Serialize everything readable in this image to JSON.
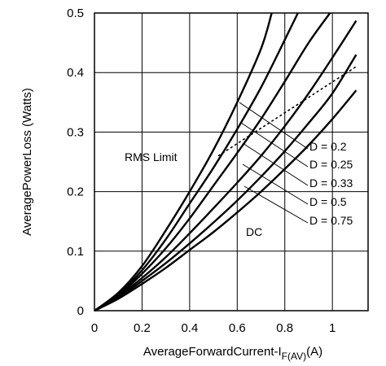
{
  "chart_data": {
    "type": "line",
    "xlabel": "AverageForwardCurrent-I",
    "xlabel_sub": "F(AV)",
    "xlabel_unit": "(A)",
    "ylabel": "AveragePowerLoss (Watts)",
    "xlim": [
      0,
      1.15
    ],
    "ylim": [
      0,
      0.5
    ],
    "xticks": [
      0,
      0.2,
      0.4,
      0.6,
      0.8,
      1.0
    ],
    "xtick_labels": [
      "0",
      "0.2",
      "0.4",
      "0.6",
      "0.8",
      "1"
    ],
    "yticks": [
      0,
      0.1,
      0.2,
      0.3,
      0.4,
      0.5
    ],
    "ytick_labels": [
      "0",
      "0.1",
      "0.2",
      "0.3",
      "0.4",
      "0.5"
    ],
    "grid": true,
    "series": [
      {
        "name": "D = 0.2",
        "x": [
          0,
          0.1,
          0.2,
          0.3,
          0.4,
          0.5,
          0.6,
          0.7,
          0.745
        ],
        "y": [
          0,
          0.03,
          0.075,
          0.135,
          0.2,
          0.27,
          0.35,
          0.44,
          0.5
        ]
      },
      {
        "name": "D = 0.25",
        "x": [
          0,
          0.1,
          0.2,
          0.3,
          0.4,
          0.5,
          0.6,
          0.7,
          0.8,
          0.855
        ],
        "y": [
          0,
          0.028,
          0.068,
          0.12,
          0.18,
          0.24,
          0.305,
          0.375,
          0.455,
          0.5
        ]
      },
      {
        "name": "D = 0.33",
        "x": [
          0,
          0.1,
          0.2,
          0.3,
          0.4,
          0.5,
          0.6,
          0.7,
          0.8,
          0.9,
          0.99
        ],
        "y": [
          0,
          0.026,
          0.062,
          0.105,
          0.155,
          0.21,
          0.265,
          0.322,
          0.385,
          0.45,
          0.5
        ]
      },
      {
        "name": "D = 0.5",
        "x": [
          0,
          0.1,
          0.2,
          0.3,
          0.4,
          0.5,
          0.6,
          0.7,
          0.8,
          0.9,
          1.0,
          1.1
        ],
        "y": [
          0,
          0.024,
          0.055,
          0.09,
          0.13,
          0.172,
          0.215,
          0.26,
          0.31,
          0.365,
          0.425,
          0.487
        ]
      },
      {
        "name": "D = 0.75",
        "x": [
          0,
          0.1,
          0.2,
          0.3,
          0.4,
          0.5,
          0.6,
          0.7,
          0.8,
          0.9,
          1.0,
          1.1
        ],
        "y": [
          0,
          0.022,
          0.05,
          0.08,
          0.113,
          0.148,
          0.185,
          0.225,
          0.268,
          0.315,
          0.365,
          0.43
        ]
      },
      {
        "name": "DC",
        "x": [
          0,
          0.1,
          0.2,
          0.3,
          0.4,
          0.5,
          0.6,
          0.7,
          0.8,
          0.9,
          1.0,
          1.1
        ],
        "y": [
          0,
          0.02,
          0.045,
          0.072,
          0.102,
          0.132,
          0.165,
          0.2,
          0.238,
          0.278,
          0.322,
          0.37
        ]
      }
    ],
    "rms_limit": {
      "x": [
        0.52,
        1.1
      ],
      "y": [
        0.26,
        0.41
      ],
      "style": "dashed"
    },
    "annotations": {
      "rms_limit": "RMS Limit",
      "dc": "DC",
      "duty_labels": [
        "D = 0.2",
        "D = 0.25",
        "D = 0.33",
        "D = 0.5",
        "D = 0.75"
      ]
    },
    "colors": {
      "lines": "#000000",
      "grid": "#000000",
      "background": "#ffffff"
    }
  }
}
